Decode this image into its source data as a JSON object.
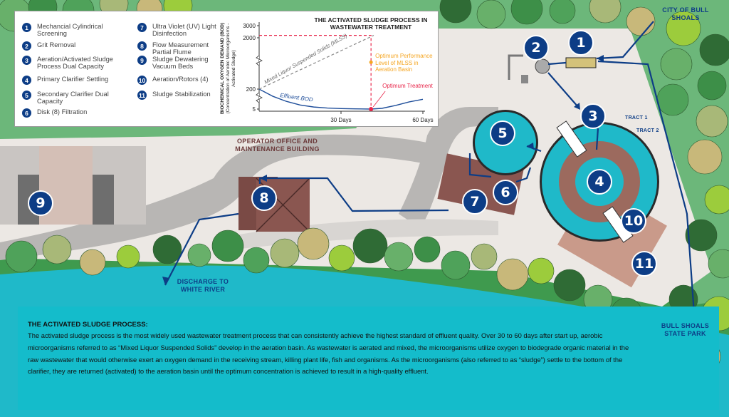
{
  "legend": {
    "items": [
      {
        "num": "1",
        "label": "Mechancial Cylindrical Screening"
      },
      {
        "num": "2",
        "label": "Grit Removal"
      },
      {
        "num": "3",
        "label": "Aeration/Activated Sludge Process Dual Capacity"
      },
      {
        "num": "4",
        "label": "Primary Clarifier Settling"
      },
      {
        "num": "5",
        "label": "Secondary Clarifier Dual Capacity"
      },
      {
        "num": "6",
        "label": "Disk (8) Filtration"
      },
      {
        "num": "7",
        "label": "Ultra Violet (UV) Light Disinfection"
      },
      {
        "num": "8",
        "label": "Flow Measurement Partial Flume"
      },
      {
        "num": "9",
        "label": "Sludge Dewatering Vacuum Beds"
      },
      {
        "num": "10",
        "label": "Aeration/Rotors (4)"
      },
      {
        "num": "11",
        "label": "Sludge Stabilization"
      }
    ]
  },
  "chart_data": {
    "type": "line",
    "title": "THE ACTIVATED SLUDGE PROCESS IN WASTEWATER TREATMENT",
    "ylabel": "BIOCHEMICAL OXYGEN DEMAND (BOD)",
    "ylabel_sub": "(Concentration of Aerobic Microorganisms - Activated Sludge)",
    "y_ticks": [
      3000,
      2000,
      200,
      5
    ],
    "y_scale": "broken axis",
    "x_ticks": [
      {
        "value": 30,
        "label": "30 Days"
      },
      {
        "value": 60,
        "label": "60 Days"
      }
    ],
    "xlim": [
      0,
      60
    ],
    "series": [
      {
        "name": "Effluent BOD",
        "color": "#1f4e9a",
        "style": "solid",
        "x": [
          0,
          5,
          10,
          15,
          20,
          25,
          30,
          35,
          41,
          45,
          50,
          55,
          60
        ],
        "y": [
          200,
          130,
          80,
          45,
          25,
          15,
          10,
          7,
          5,
          12,
          40,
          75,
          100
        ]
      },
      {
        "name": "Mixed Liquor Suspended Solids (MLSS)",
        "color": "#888888",
        "style": "dashed",
        "x": [
          0,
          42
        ],
        "y": [
          200,
          2200
        ]
      }
    ],
    "annotations": [
      {
        "text": "Optimum Performance Level of MLSS in Aeration Basin",
        "color": "#f5a623"
      },
      {
        "text": "Optimum Treatment",
        "color": "#e8264a",
        "x": 41,
        "y": 5
      }
    ],
    "optimum_level": 2200,
    "optimum_day": 41
  },
  "map": {
    "city_label": "CITY OF BULL SHOALS",
    "park_label": "BULL SHOALS STATE PARK",
    "office_label": "OPERATOR OFFICE AND MAINTENANCE BUILDING",
    "discharge_label": "DISCHARGE TO WHITE RIVER",
    "tract1": "TRACT 1",
    "tract2": "TRACT 2",
    "markers": [
      "1",
      "2",
      "3",
      "4",
      "5",
      "6",
      "7",
      "8",
      "9",
      "10",
      "11"
    ]
  },
  "info": {
    "heading": "THE ACTIVATED SLUDGE PROCESS:",
    "body": "The activated sludge process is the most widely used wastewater treatment process that can consistently achieve the highest standard of effluent quality. Over 30 to 60 days after start up, aerobic microorganisms referred to as “Mixed Liquor Suspended Solids” develop in the aeration basin. As wastewater is aerated and mixed, the microorganisms utilize oxygen to biodegrade organic material in the raw wastewater that would otherwise exert an oxygen demand in the receiving stream, killing plant life, fish and organisms. As the microorganisms (also referred to as “sludge”) settle to the bottom of the clarifier, they are returned (activated) to the aeration basin until the optimum concentration is achieved to result in a high-quality effluent."
  },
  "colors": {
    "navy": "#0d3d86",
    "water": "#1fb9c9",
    "land": "#ece8e4",
    "road": "#b8b6b4",
    "roof": "#7a4a45",
    "maplabel": "#6b3a3a"
  }
}
